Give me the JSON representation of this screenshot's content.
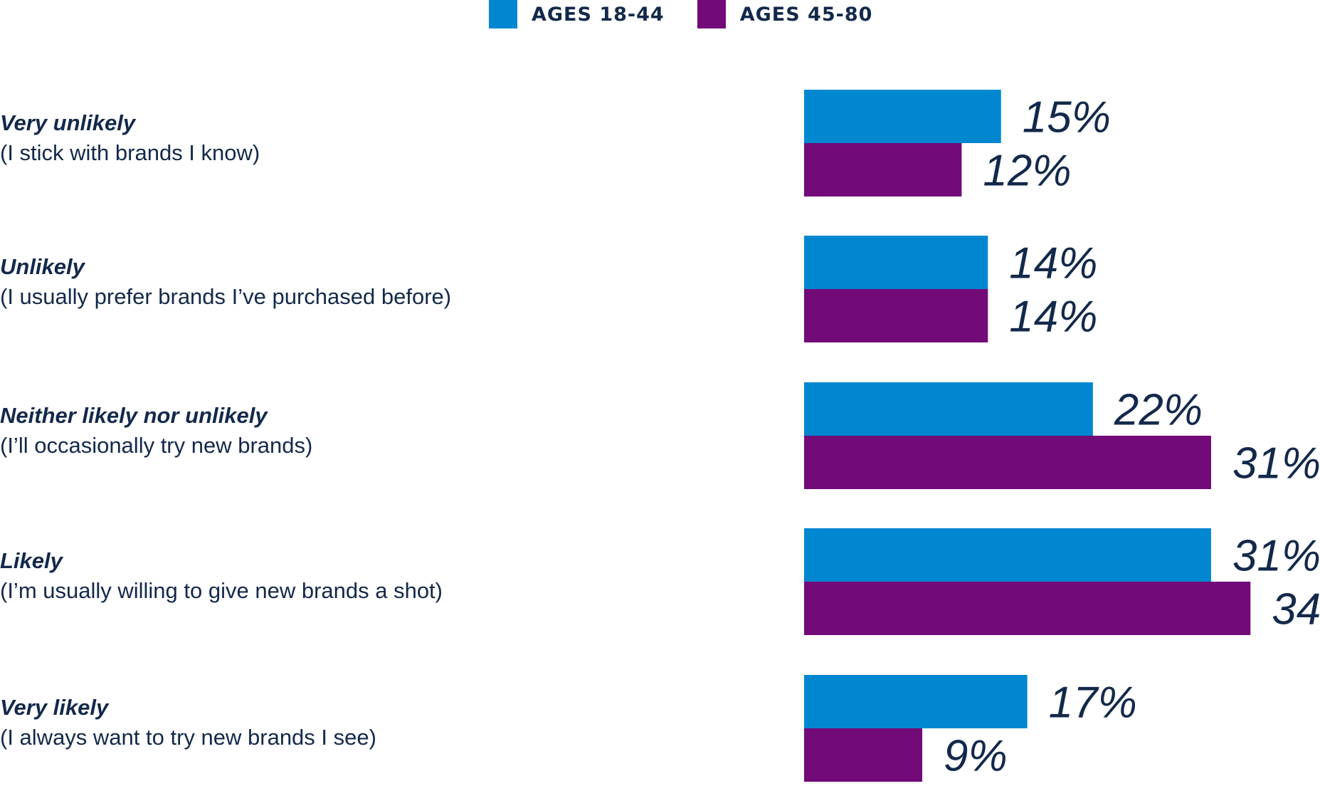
{
  "chart_data": {
    "type": "bar",
    "orientation": "horizontal",
    "legend": "top",
    "series": [
      {
        "name": "AGES 18-44",
        "color": "#0087d0",
        "values": [
          15,
          14,
          22,
          31,
          17
        ]
      },
      {
        "name": "AGES 45-80",
        "color": "#720a78",
        "values": [
          12,
          14,
          31,
          34,
          9
        ]
      }
    ],
    "categories": [
      {
        "title": "Very unlikely",
        "subtitle": "(I stick with brands I know)"
      },
      {
        "title": "Unlikely",
        "subtitle": "(I usually prefer brands I’ve purchased before)"
      },
      {
        "title": "Neither likely nor unlikely",
        "subtitle": "(I’ll occasionally try new brands)"
      },
      {
        "title": "Likely",
        "subtitle": "(I’m usually willing to give new brands a shot)"
      },
      {
        "title": "Very likely",
        "subtitle": "(I always want to try new brands I see)"
      }
    ],
    "value_suffix": "%"
  }
}
